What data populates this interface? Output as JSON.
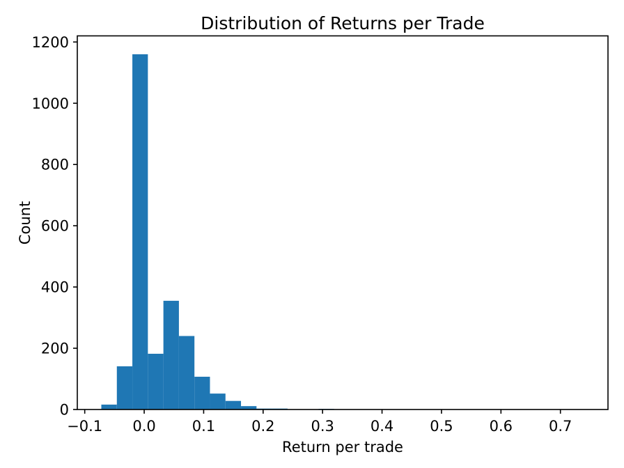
{
  "figure": {
    "background": "#ffffff"
  },
  "chart_data": {
    "type": "bar",
    "subtype": "histogram",
    "title": "Distribution of Returns per Trade",
    "xlabel": "Return per trade",
    "ylabel": "Count",
    "bar_color": "#1f77b4",
    "axis_color": "#000000",
    "grid": false,
    "legend": null,
    "xlim": [
      -0.1125,
      0.78
    ],
    "ylim": [
      0,
      1220
    ],
    "xticks": {
      "values": [
        -0.1,
        0.0,
        0.1,
        0.2,
        0.3,
        0.4,
        0.5,
        0.6,
        0.7
      ],
      "labels": [
        "−0.1",
        "0.0",
        "0.1",
        "0.2",
        "0.3",
        "0.4",
        "0.5",
        "0.6",
        "0.7"
      ]
    },
    "yticks": {
      "values": [
        0,
        200,
        400,
        600,
        800,
        1000,
        1200
      ],
      "labels": [
        "0",
        "200",
        "400",
        "600",
        "800",
        "1000",
        "1200"
      ]
    },
    "bins": {
      "edges": [
        -0.0721,
        -0.046,
        -0.0199,
        0.0062,
        0.0323,
        0.0584,
        0.0845,
        0.1106,
        0.1367,
        0.1628,
        0.1889,
        0.215,
        0.2411,
        0.2672,
        0.2933,
        0.3194
      ],
      "counts": [
        16,
        141,
        1160,
        182,
        355,
        240,
        107,
        52,
        28,
        11,
        3,
        3,
        0,
        0,
        2
      ]
    }
  }
}
